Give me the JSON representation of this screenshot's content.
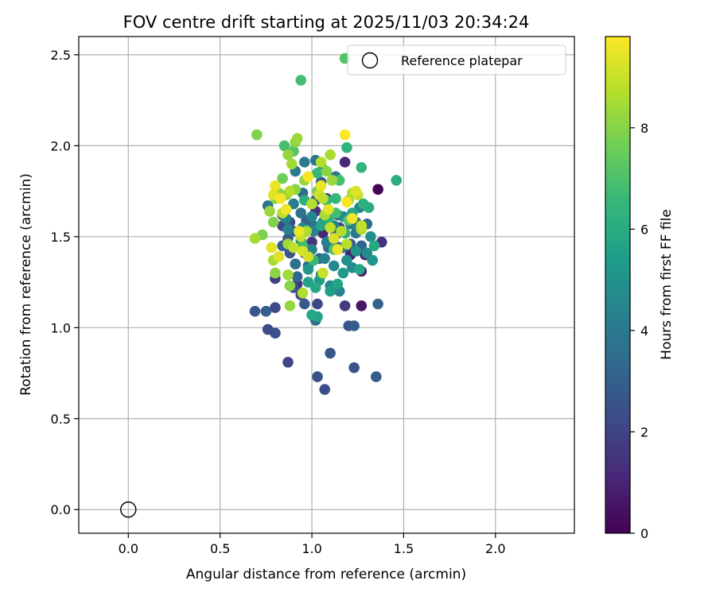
{
  "chart_data": {
    "type": "scatter",
    "title": "FOV centre drift starting at 2025/11/03 20:34:24",
    "xlabel": "Angular distance from reference (arcmin)",
    "ylabel": "Rotation from reference (arcmin)",
    "xlim": [
      -0.27,
      2.43
    ],
    "ylim": [
      -0.13,
      2.6
    ],
    "xticks": [
      0.0,
      0.5,
      1.0,
      1.5,
      2.0
    ],
    "xtick_labels": [
      "0.0",
      "0.5",
      "1.0",
      "1.5",
      "2.0"
    ],
    "yticks": [
      0.0,
      0.5,
      1.0,
      1.5,
      2.0,
      2.5
    ],
    "ytick_labels": [
      "0.0",
      "0.5",
      "1.0",
      "1.5",
      "2.0",
      "2.5"
    ],
    "grid": true,
    "legend": {
      "location": "top-right",
      "entries": [
        "Reference platepar"
      ]
    },
    "reference_point": {
      "x": 0.0,
      "y": 0.0,
      "label": "Reference platepar"
    },
    "colorbar": {
      "label": "Hours from first FF file",
      "min": 0,
      "max": 9.8,
      "ticks": [
        0,
        2,
        4,
        6,
        8
      ],
      "tick_labels": [
        "0",
        "2",
        "4",
        "6",
        "8"
      ],
      "colormap": "viridis"
    },
    "colormap_stops": [
      "#440154",
      "#482878",
      "#3e4989",
      "#31688e",
      "#26828e",
      "#1f9e89",
      "#35b779",
      "#6ece58",
      "#b5de2b",
      "#fde725"
    ],
    "series": [
      {
        "name": "FOV centre drift",
        "points": [
          [
            1.36,
            1.76,
            0.1
          ],
          [
            1.27,
            1.12,
            0.6
          ],
          [
            1.18,
            1.91,
            1.2
          ],
          [
            0.91,
            1.35,
            0.8
          ],
          [
            0.95,
            1.43,
            1.0
          ],
          [
            1.21,
            1.4,
            0.9
          ],
          [
            1.29,
            1.4,
            1.1
          ],
          [
            1.06,
            1.52,
            1.0
          ],
          [
            1.27,
            1.31,
            0.7
          ],
          [
            1.38,
            1.47,
            1.3
          ],
          [
            1.02,
            1.64,
            1.4
          ],
          [
            1.12,
            1.46,
            1.5
          ],
          [
            1.18,
            1.12,
            1.7
          ],
          [
            0.8,
            1.27,
            1.8
          ],
          [
            0.84,
            1.62,
            1.9
          ],
          [
            0.92,
            1.24,
            1.6
          ],
          [
            1.0,
            1.47,
            1.5
          ],
          [
            1.08,
            1.71,
            1.4
          ],
          [
            1.15,
            1.55,
            1.7
          ],
          [
            0.87,
            0.81,
            2.1
          ],
          [
            1.07,
            0.66,
            2.3
          ],
          [
            1.03,
            0.73,
            2.5
          ],
          [
            1.1,
            0.86,
            2.7
          ],
          [
            1.23,
            0.78,
            2.6
          ],
          [
            1.35,
            0.73,
            2.9
          ],
          [
            0.76,
            0.99,
            2.2
          ],
          [
            0.8,
            0.97,
            2.4
          ],
          [
            0.69,
            1.09,
            2.6
          ],
          [
            0.75,
            1.09,
            3.0
          ],
          [
            0.8,
            1.11,
            2.2
          ],
          [
            1.03,
            1.13,
            2.1
          ],
          [
            1.2,
            1.01,
            2.6
          ],
          [
            1.23,
            1.01,
            2.9
          ],
          [
            1.36,
            1.13,
            3.1
          ],
          [
            1.02,
            1.04,
            3.5
          ],
          [
            0.94,
            1.18,
            2.0
          ],
          [
            0.9,
            1.22,
            2.3
          ],
          [
            0.92,
            1.28,
            3.2
          ],
          [
            0.96,
            1.13,
            2.8
          ],
          [
            0.84,
            1.56,
            2.1
          ],
          [
            0.87,
            1.49,
            2.7
          ],
          [
            0.9,
            1.53,
            3.1
          ],
          [
            0.96,
            1.41,
            2.4
          ],
          [
            1.04,
            1.38,
            2.9
          ],
          [
            1.09,
            1.44,
            3.3
          ],
          [
            1.13,
            1.51,
            2.2
          ],
          [
            1.21,
            1.46,
            2.8
          ],
          [
            1.24,
            1.58,
            3.4
          ],
          [
            1.14,
            1.62,
            2.5
          ],
          [
            1.02,
            1.7,
            2.7
          ],
          [
            0.97,
            1.59,
            3.0
          ],
          [
            0.88,
            1.58,
            2.2
          ],
          [
            1.17,
            1.44,
            3.6
          ],
          [
            1.27,
            1.45,
            3.2
          ],
          [
            0.91,
            1.35,
            3.7
          ],
          [
            0.98,
            1.34,
            3.3
          ],
          [
            0.84,
            1.45,
            3.0
          ],
          [
            0.95,
            1.74,
            3.5
          ],
          [
            1.05,
            1.8,
            2.8
          ],
          [
            0.88,
            1.41,
            2.6
          ],
          [
            1.01,
            1.56,
            3.8
          ],
          [
            1.1,
            1.62,
            4.0
          ],
          [
            1.24,
            1.52,
            3.9
          ],
          [
            0.76,
            1.67,
            3.6
          ],
          [
            0.96,
            1.91,
            4.0
          ],
          [
            1.02,
            1.92,
            3.8
          ],
          [
            0.91,
            1.86,
            4.1
          ],
          [
            1.06,
            1.87,
            4.2
          ],
          [
            1.13,
            1.83,
            3.9
          ],
          [
            0.86,
            1.6,
            4.4
          ],
          [
            0.9,
            1.68,
            4.2
          ],
          [
            0.94,
            1.63,
            3.7
          ],
          [
            1.0,
            1.61,
            4.5
          ],
          [
            1.06,
            1.58,
            4.6
          ],
          [
            1.12,
            1.56,
            4.3
          ],
          [
            1.17,
            1.61,
            4.7
          ],
          [
            1.21,
            1.57,
            4.1
          ],
          [
            1.26,
            1.66,
            4.5
          ],
          [
            1.3,
            1.57,
            3.4
          ],
          [
            1.32,
            1.5,
            4.8
          ],
          [
            0.94,
            1.48,
            4.9
          ],
          [
            1.0,
            1.43,
            4.4
          ],
          [
            1.07,
            1.38,
            4.3
          ],
          [
            1.12,
            1.34,
            4.6
          ],
          [
            1.19,
            1.37,
            4.9
          ],
          [
            1.24,
            1.42,
            5.0
          ],
          [
            1.3,
            1.41,
            4.7
          ],
          [
            1.33,
            1.37,
            5.1
          ],
          [
            0.98,
            1.32,
            5.2
          ],
          [
            1.05,
            1.29,
            4.1
          ],
          [
            1.1,
            1.23,
            4.6
          ],
          [
            1.15,
            1.2,
            4.3
          ],
          [
            1.17,
            1.3,
            5.3
          ],
          [
            1.22,
            1.33,
            4.8
          ],
          [
            1.08,
            1.47,
            4.2
          ],
          [
            1.15,
            1.44,
            4.0
          ],
          [
            1.01,
            1.53,
            4.4
          ],
          [
            0.95,
            1.55,
            4.6
          ],
          [
            0.87,
            1.54,
            4.3
          ],
          [
            1.04,
            1.26,
            5.4
          ],
          [
            1.03,
            1.06,
            5.6
          ],
          [
            1.0,
            1.07,
            5.8
          ],
          [
            1.1,
            1.2,
            5.5
          ],
          [
            1.14,
            1.24,
            5.7
          ],
          [
            1.02,
            1.22,
            5.9
          ],
          [
            0.98,
            1.25,
            5.6
          ],
          [
            1.26,
            1.32,
            5.8
          ],
          [
            1.34,
            1.45,
            5.9
          ],
          [
            1.31,
            1.66,
            6.0
          ],
          [
            1.28,
            1.68,
            6.2
          ],
          [
            1.46,
            1.81,
            6.1
          ],
          [
            1.27,
            1.88,
            6.4
          ],
          [
            1.19,
            1.99,
            6.3
          ],
          [
            1.18,
            1.52,
            6.1
          ],
          [
            1.09,
            1.6,
            6.3
          ],
          [
            1.05,
            1.56,
            5.8
          ],
          [
            1.13,
            1.71,
            6.5
          ],
          [
            1.08,
            1.7,
            6.4
          ],
          [
            1.22,
            1.63,
            5.9
          ],
          [
            0.96,
            1.7,
            6.2
          ],
          [
            1.03,
            1.85,
            6.6
          ],
          [
            0.94,
            2.36,
            6.8
          ],
          [
            1.18,
            2.48,
            7.1
          ],
          [
            0.85,
            2.0,
            6.9
          ],
          [
            0.95,
            1.45,
            6.7
          ],
          [
            1.01,
            1.37,
            6.6
          ],
          [
            1.15,
            1.81,
            6.9
          ],
          [
            1.12,
            1.43,
            7.0
          ],
          [
            1.2,
            1.59,
            7.2
          ],
          [
            1.13,
            1.63,
            6.8
          ],
          [
            0.9,
            1.97,
            7.2
          ],
          [
            0.7,
            2.06,
            7.9
          ],
          [
            0.73,
            1.51,
            7.8
          ],
          [
            0.69,
            1.49,
            8.5
          ],
          [
            0.79,
            1.58,
            7.9
          ],
          [
            0.8,
            1.71,
            8.0
          ],
          [
            0.77,
            1.64,
            8.3
          ],
          [
            0.82,
            1.74,
            8.2
          ],
          [
            0.86,
            1.73,
            8.1
          ],
          [
            0.84,
            1.82,
            7.6
          ],
          [
            0.89,
            1.9,
            8.4
          ],
          [
            0.91,
            1.76,
            8.0
          ],
          [
            0.96,
            1.81,
            8.2
          ],
          [
            1.03,
            1.75,
            7.8
          ],
          [
            1.08,
            1.86,
            8.0
          ],
          [
            1.11,
            1.81,
            8.3
          ],
          [
            1.1,
            1.95,
            8.5
          ],
          [
            1.05,
            1.91,
            8.7
          ],
          [
            0.91,
            2.02,
            8.1
          ],
          [
            0.87,
            1.95,
            8.2
          ],
          [
            0.92,
            2.04,
            8.3
          ],
          [
            0.88,
            1.75,
            8.7
          ],
          [
            0.79,
            1.37,
            8.5
          ],
          [
            0.8,
            1.3,
            8.1
          ],
          [
            0.88,
            1.23,
            8.0
          ],
          [
            0.87,
            1.29,
            8.4
          ],
          [
            0.88,
            1.12,
            8.2
          ],
          [
            0.95,
            1.19,
            8.6
          ],
          [
            0.84,
            1.63,
            8.8
          ],
          [
            0.87,
            1.46,
            8.4
          ],
          [
            0.9,
            1.44,
            8.9
          ],
          [
            0.94,
            1.5,
            9.0
          ],
          [
            0.97,
            1.53,
            8.6
          ],
          [
            1.0,
            1.68,
            8.7
          ],
          [
            1.04,
            1.73,
            9.1
          ],
          [
            1.06,
            1.71,
            8.8
          ],
          [
            1.07,
            1.62,
            8.5
          ],
          [
            1.1,
            1.55,
            8.9
          ],
          [
            1.12,
            1.49,
            9.2
          ],
          [
            1.16,
            1.53,
            8.7
          ],
          [
            1.19,
            1.46,
            8.8
          ],
          [
            1.2,
            1.7,
            8.4
          ],
          [
            1.22,
            1.74,
            8.6
          ],
          [
            1.25,
            1.73,
            9.0
          ],
          [
            1.27,
            1.54,
            8.6
          ],
          [
            1.27,
            1.56,
            8.9
          ],
          [
            1.06,
            1.3,
            9.0
          ],
          [
            0.98,
            1.39,
            9.1
          ],
          [
            0.95,
            1.42,
            9.2
          ],
          [
            0.82,
            1.39,
            9.3
          ],
          [
            0.78,
            1.44,
            9.4
          ],
          [
            0.8,
            1.78,
            9.5
          ],
          [
            0.79,
            1.73,
            9.4
          ],
          [
            0.98,
            1.83,
            9.7
          ],
          [
            1.05,
            1.78,
            9.5
          ],
          [
            1.14,
            1.43,
            9.5
          ],
          [
            1.22,
            1.6,
            9.6
          ],
          [
            1.19,
            1.69,
            9.7
          ],
          [
            1.24,
            1.75,
            9.3
          ],
          [
            1.18,
            2.06,
            9.8
          ],
          [
            0.93,
            1.53,
            9.5
          ],
          [
            0.86,
            1.65,
            9.6
          ],
          [
            0.83,
            1.71,
            9.7
          ],
          [
            1.09,
            1.65,
            9.4
          ]
        ]
      }
    ]
  }
}
